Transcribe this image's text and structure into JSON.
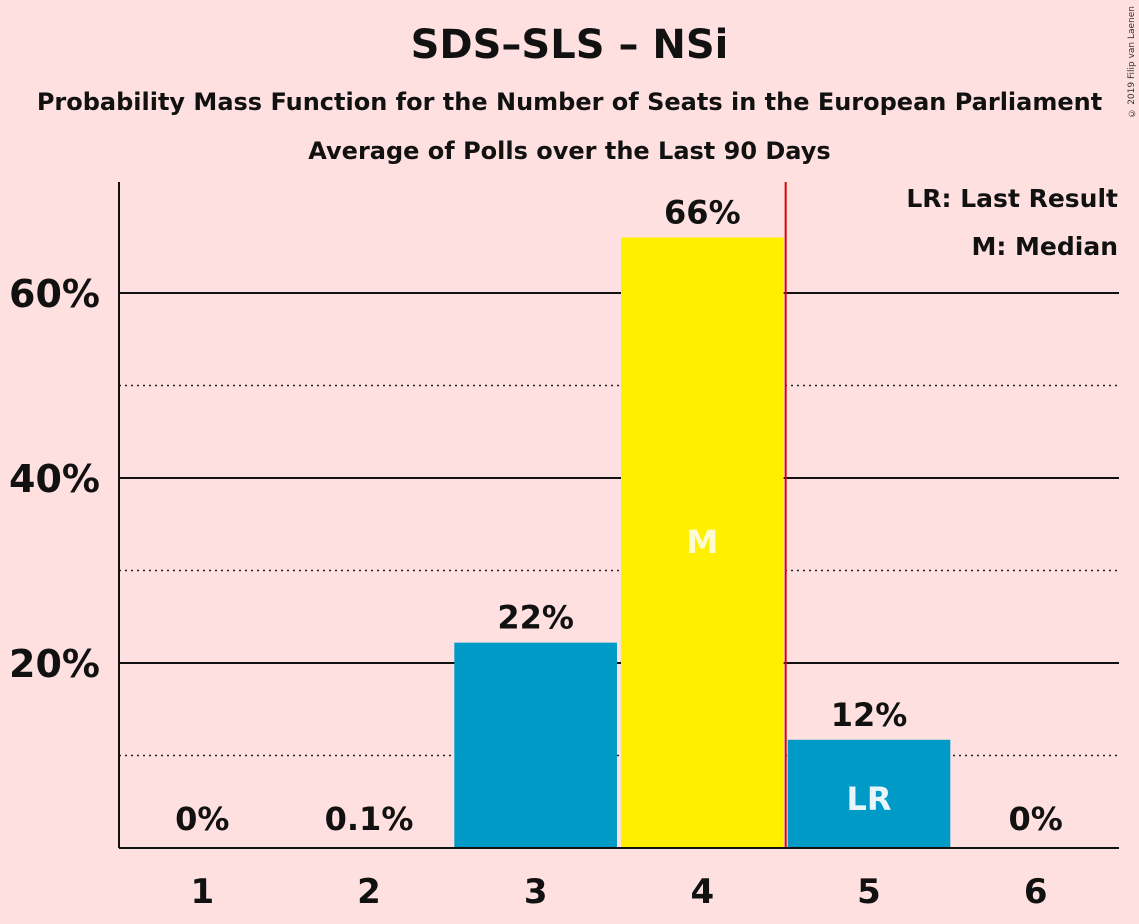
{
  "title": "SDS–SLS – NSi",
  "subtitle": "Probability Mass Function for the Number of Seats in the European Parliament",
  "subtitle2": "Average of Polls over the Last 90 Days",
  "copyright": "© 2019 Filip van Laenen",
  "legend": {
    "last_result": "LR: Last Result",
    "median": "M: Median"
  },
  "colors": {
    "background": "#FFE0E0",
    "bar": "#009AC7",
    "median_bar": "#FFF000",
    "last_result_line": "#E00000"
  },
  "chart_data": {
    "type": "bar",
    "categories": [
      "1",
      "2",
      "3",
      "4",
      "5",
      "6"
    ],
    "values": [
      0,
      0.1,
      22.2,
      66,
      11.7,
      0
    ],
    "value_labels": [
      "0%",
      "0.1%",
      "22%",
      "66%",
      "12%",
      "0%"
    ],
    "bar_marks": [
      "",
      "",
      "",
      "M",
      "LR",
      ""
    ],
    "median_category": "4",
    "last_result_after": "4",
    "ylim": [
      0,
      72
    ],
    "yticks": [
      20,
      40,
      60
    ],
    "ytick_labels": [
      "20%",
      "40%",
      "60%"
    ],
    "minor_gridlines": [
      10,
      30,
      50
    ],
    "grid": true,
    "legend_position": "top-right"
  }
}
